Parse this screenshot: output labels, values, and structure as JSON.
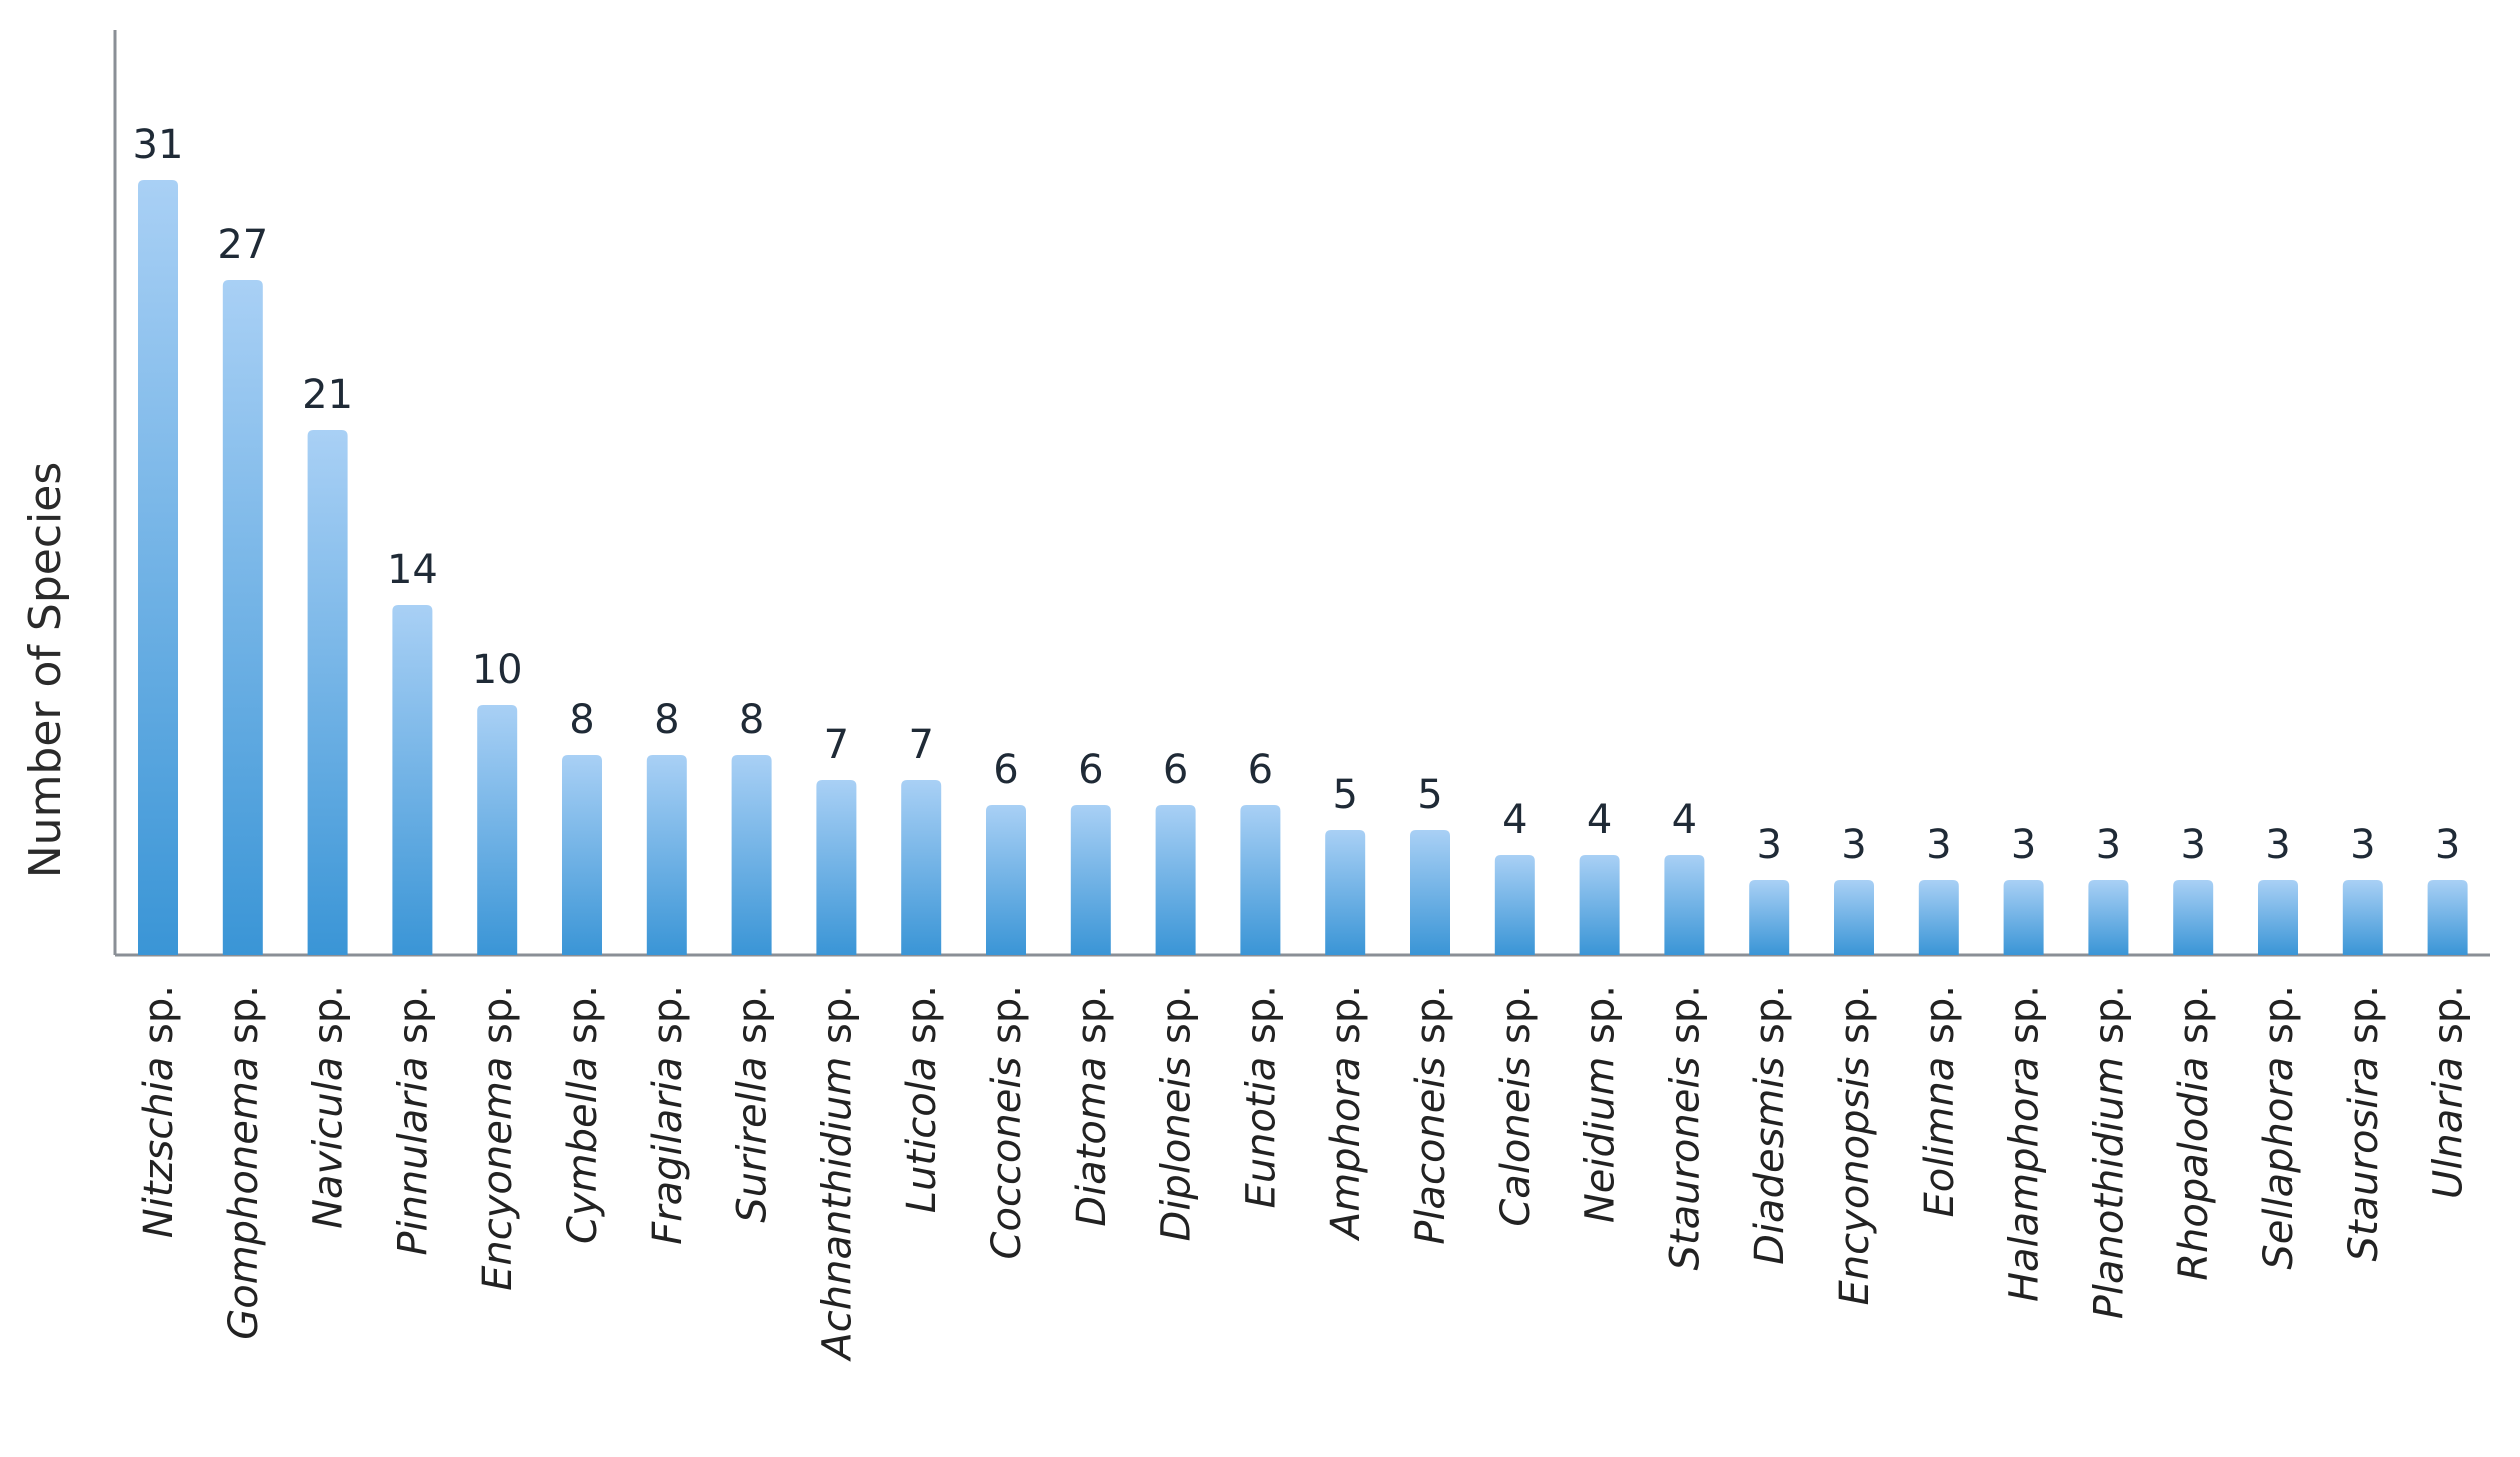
{
  "chart_data": {
    "type": "bar",
    "title": "",
    "xlabel": "",
    "ylabel": "Number of Species",
    "ylim": [
      0,
      34
    ],
    "grid": false,
    "categories": [
      {
        "genus": "Nitzschia",
        "suffix": "sp."
      },
      {
        "genus": "Gomphonema",
        "suffix": "sp."
      },
      {
        "genus": "Navicula",
        "suffix": "sp."
      },
      {
        "genus": "Pinnularia",
        "suffix": "sp."
      },
      {
        "genus": "Encyonema",
        "suffix": "sp."
      },
      {
        "genus": "Cymbella",
        "suffix": "sp."
      },
      {
        "genus": "Fragilaria",
        "suffix": "sp."
      },
      {
        "genus": "Surirella",
        "suffix": "sp."
      },
      {
        "genus": "Achnanthidium",
        "suffix": "sp."
      },
      {
        "genus": "Luticola",
        "suffix": "sp."
      },
      {
        "genus": "Cocconeis",
        "suffix": "sp."
      },
      {
        "genus": "Diatoma",
        "suffix": "sp."
      },
      {
        "genus": "Diploneis",
        "suffix": "sp."
      },
      {
        "genus": "Eunotia",
        "suffix": "sp."
      },
      {
        "genus": "Amphora",
        "suffix": "sp."
      },
      {
        "genus": "Placoneis",
        "suffix": "sp."
      },
      {
        "genus": "Caloneis",
        "suffix": "sp."
      },
      {
        "genus": "Neidium",
        "suffix": "sp."
      },
      {
        "genus": "Stauroneis",
        "suffix": "sp."
      },
      {
        "genus": "Diadesmis",
        "suffix": "sp."
      },
      {
        "genus": "Encyonopsis",
        "suffix": "sp."
      },
      {
        "genus": "Eolimna",
        "suffix": "sp."
      },
      {
        "genus": "Halamphora",
        "suffix": "sp."
      },
      {
        "genus": "Planothidium",
        "suffix": "sp."
      },
      {
        "genus": "Rhopalodia",
        "suffix": "sp."
      },
      {
        "genus": "Sellaphora",
        "suffix": "sp."
      },
      {
        "genus": "Staurosira",
        "suffix": "sp."
      },
      {
        "genus": "Ulnaria",
        "suffix": "sp."
      }
    ],
    "values": [
      31,
      27,
      21,
      14,
      10,
      8,
      8,
      8,
      7,
      7,
      6,
      6,
      6,
      6,
      5,
      5,
      4,
      4,
      4,
      3,
      3,
      3,
      3,
      3,
      3,
      3,
      3,
      3
    ],
    "data_labels": true,
    "colors": {
      "bar_top": "#a9d0f5",
      "bar_bottom": "#3a95d6",
      "axis": "#8a8f96"
    }
  }
}
